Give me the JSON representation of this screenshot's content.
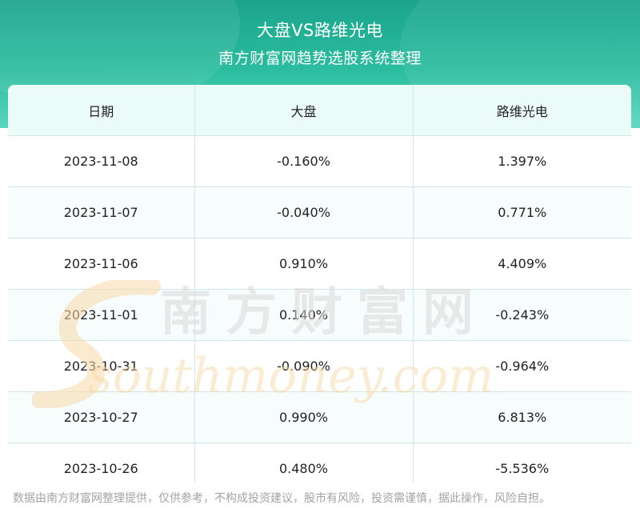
{
  "header": {
    "title": "大盘VS路维光电",
    "subtitle": "南方财富网趋势选股系统整理"
  },
  "table": {
    "columns": [
      "日期",
      "大盘",
      "路维光电"
    ],
    "rows": [
      [
        "2023-11-08",
        "-0.160%",
        "1.397%"
      ],
      [
        "2023-11-07",
        "-0.040%",
        "0.771%"
      ],
      [
        "2023-11-06",
        "0.910%",
        "4.409%"
      ],
      [
        "2023-11-01",
        "0.140%",
        "-0.243%"
      ],
      [
        "2023-10-31",
        "-0.090%",
        "-0.964%"
      ],
      [
        "2023-10-27",
        "0.990%",
        "6.813%"
      ],
      [
        "2023-10-26",
        "0.480%",
        "-5.536%"
      ]
    ]
  },
  "watermark": {
    "cn": "南方财富网",
    "en": "southmoney.com"
  },
  "footer": {
    "disclaimer": "数据由南方财富网整理提供，仅供参考，不构成投资建议，股市有风险，投资需谨慎，据此操作，风险自担。"
  },
  "colors": {
    "banner": "#2bbd9f",
    "header_row": "#eafbf8",
    "grid": "#cfe8e4",
    "watermark_gray": "#d9d9d9",
    "watermark_orange": "#f7d9a8"
  }
}
